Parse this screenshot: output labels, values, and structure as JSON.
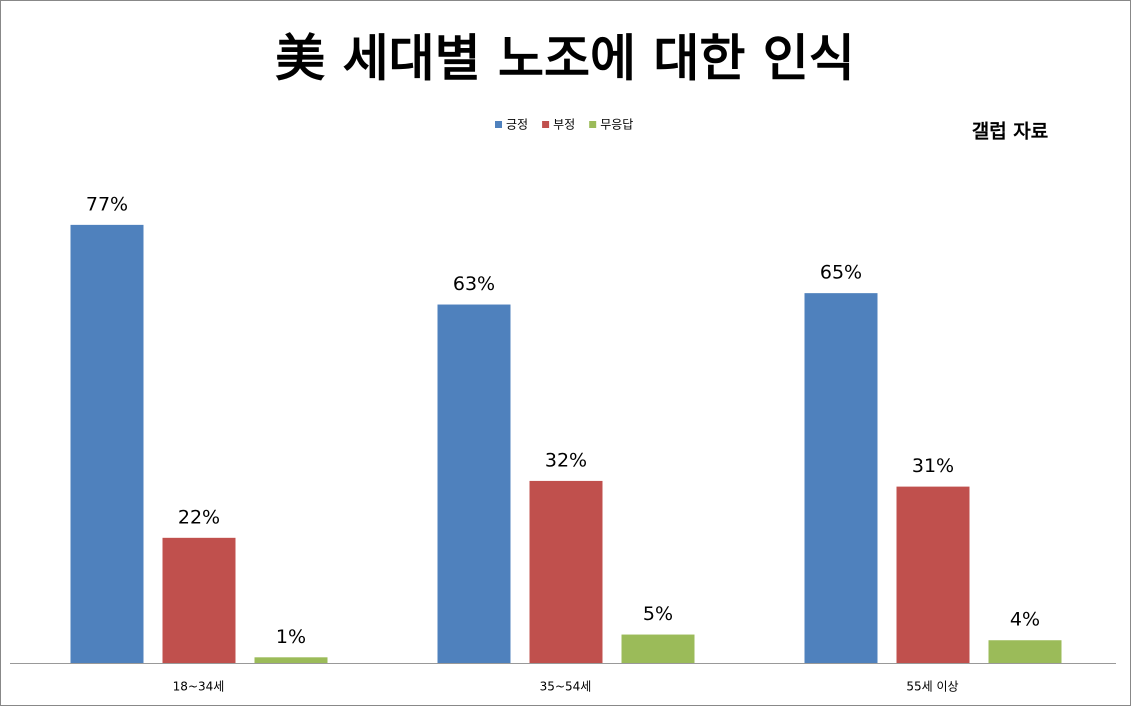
{
  "chart_data": {
    "type": "bar",
    "title": "美 세대별 노조에 대한 인식",
    "annotation": "갤럽 자료",
    "categories": [
      "18~34세",
      "35~54세",
      "55세 이상"
    ],
    "series": [
      {
        "name": "긍정",
        "color": "#4f81bd",
        "values": [
          77,
          63,
          65
        ],
        "value_labels": [
          "77%",
          "63%",
          "65%"
        ]
      },
      {
        "name": "부정",
        "color": "#c0504d",
        "values": [
          22,
          32,
          31
        ],
        "value_labels": [
          "22%",
          "32%",
          "31%"
        ]
      },
      {
        "name": "무응답",
        "color": "#9bbb59",
        "values": [
          1,
          5,
          4
        ],
        "value_labels": [
          "1%",
          "5%",
          "4%"
        ]
      }
    ]
  }
}
